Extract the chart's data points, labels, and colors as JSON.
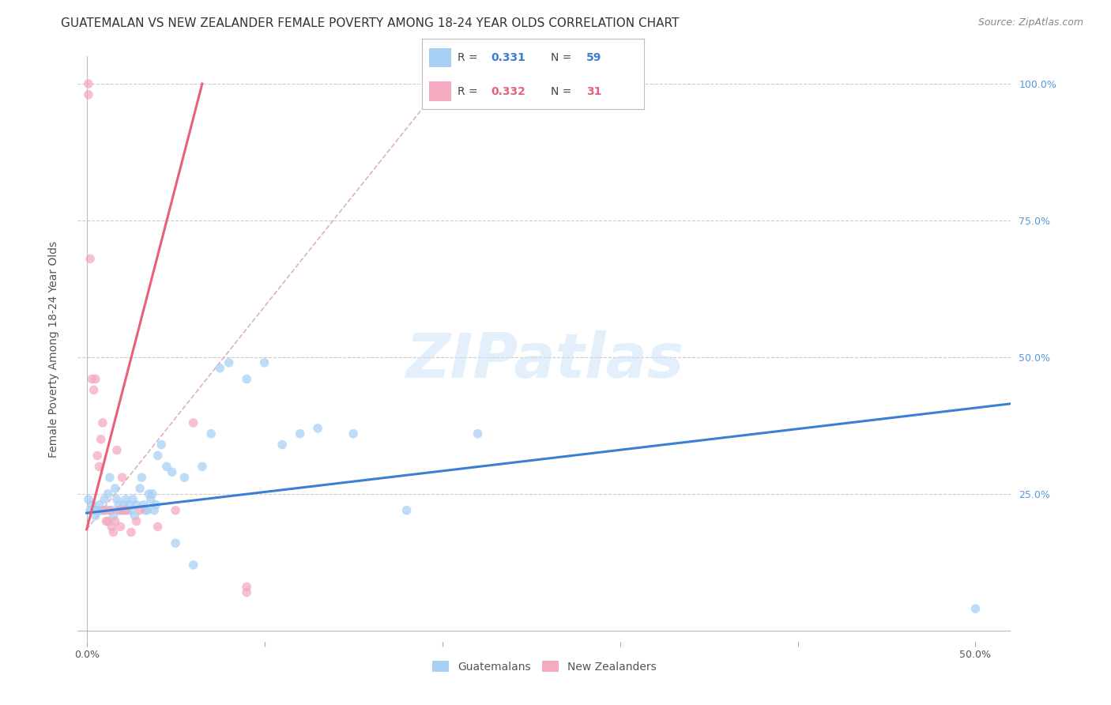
{
  "title": "GUATEMALAN VS NEW ZEALANDER FEMALE POVERTY AMONG 18-24 YEAR OLDS CORRELATION CHART",
  "source": "Source: ZipAtlas.com",
  "ylabel": "Female Poverty Among 18-24 Year Olds",
  "x_ticks": [
    0.0,
    0.1,
    0.2,
    0.3,
    0.4,
    0.5
  ],
  "x_tick_labels": [
    "0.0%",
    "",
    "",
    "",
    "",
    "50.0%"
  ],
  "y_ticks": [
    0.0,
    0.25,
    0.5,
    0.75,
    1.0
  ],
  "y_tick_labels_right": [
    "",
    "25.0%",
    "50.0%",
    "75.0%",
    "100.0%"
  ],
  "xlim": [
    -0.005,
    0.52
  ],
  "ylim": [
    -0.02,
    1.05
  ],
  "blue_scatter_x": [
    0.001,
    0.002,
    0.003,
    0.004,
    0.005,
    0.006,
    0.007,
    0.008,
    0.009,
    0.01,
    0.011,
    0.012,
    0.013,
    0.014,
    0.015,
    0.016,
    0.017,
    0.018,
    0.019,
    0.02,
    0.021,
    0.022,
    0.023,
    0.024,
    0.025,
    0.026,
    0.027,
    0.028,
    0.03,
    0.031,
    0.032,
    0.033,
    0.034,
    0.035,
    0.036,
    0.037,
    0.038,
    0.039,
    0.04,
    0.042,
    0.045,
    0.048,
    0.05,
    0.055,
    0.06,
    0.065,
    0.07,
    0.075,
    0.08,
    0.09,
    0.1,
    0.11,
    0.12,
    0.13,
    0.15,
    0.18,
    0.22,
    0.5
  ],
  "blue_scatter_y": [
    0.24,
    0.22,
    0.23,
    0.22,
    0.21,
    0.22,
    0.23,
    0.22,
    0.22,
    0.24,
    0.22,
    0.25,
    0.28,
    0.22,
    0.21,
    0.26,
    0.24,
    0.23,
    0.22,
    0.22,
    0.23,
    0.24,
    0.22,
    0.23,
    0.22,
    0.24,
    0.21,
    0.23,
    0.26,
    0.28,
    0.23,
    0.22,
    0.22,
    0.25,
    0.24,
    0.25,
    0.22,
    0.23,
    0.32,
    0.34,
    0.3,
    0.29,
    0.16,
    0.28,
    0.12,
    0.3,
    0.36,
    0.48,
    0.49,
    0.46,
    0.49,
    0.34,
    0.36,
    0.37,
    0.36,
    0.22,
    0.36,
    0.04
  ],
  "pink_scatter_x": [
    0.001,
    0.001,
    0.002,
    0.003,
    0.004,
    0.005,
    0.006,
    0.007,
    0.008,
    0.009,
    0.01,
    0.011,
    0.012,
    0.013,
    0.014,
    0.015,
    0.016,
    0.017,
    0.018,
    0.019,
    0.02,
    0.021,
    0.022,
    0.025,
    0.028,
    0.03,
    0.04,
    0.05,
    0.06,
    0.09,
    0.09
  ],
  "pink_scatter_y": [
    1.0,
    0.98,
    0.68,
    0.46,
    0.44,
    0.46,
    0.32,
    0.3,
    0.35,
    0.38,
    0.22,
    0.2,
    0.2,
    0.22,
    0.19,
    0.18,
    0.2,
    0.33,
    0.22,
    0.19,
    0.28,
    0.22,
    0.22,
    0.18,
    0.2,
    0.22,
    0.19,
    0.22,
    0.38,
    0.08,
    0.07
  ],
  "blue_line_x": [
    0.0,
    0.52
  ],
  "blue_line_y": [
    0.215,
    0.415
  ],
  "pink_line_x": [
    0.0,
    0.065
  ],
  "pink_line_y": [
    0.185,
    1.0
  ],
  "pink_dash_line_x": [
    0.0,
    0.2
  ],
  "pink_dash_line_y": [
    0.185,
    1.0
  ],
  "blue_color": "#a8d0f5",
  "pink_color": "#f5aabf",
  "blue_line_color": "#3a7fd4",
  "pink_line_color": "#e8607a",
  "pink_dash_color": "#e0b0bb",
  "scatter_size": 70,
  "scatter_alpha": 0.75,
  "watermark_text": "ZIPatlas",
  "background_color": "#ffffff",
  "grid_color": "#cccccc",
  "title_fontsize": 11,
  "source_fontsize": 9,
  "axis_label_fontsize": 10,
  "tick_fontsize": 9,
  "right_axis_color": "#5599dd"
}
